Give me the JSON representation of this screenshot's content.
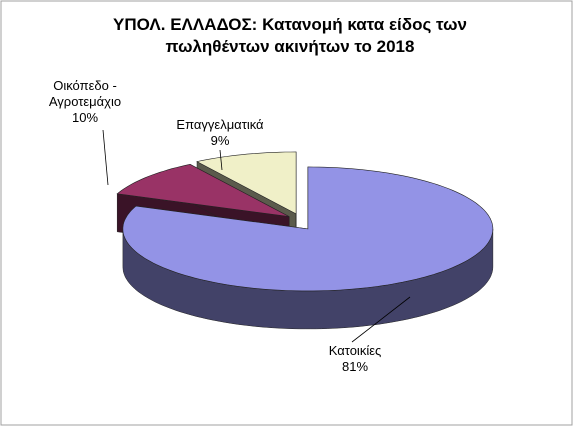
{
  "chart_data": {
    "type": "pie",
    "title": "ΥΠΟΛ. ΕΛΛΑΔΟΣ: Κατανομή κατα είδος των πωληθέντων ακινήτων το 2018",
    "categories": [
      "Κατοικίες",
      "Οικόπεδο - Αγροτεμάχιο",
      "Επαγγελματικά"
    ],
    "values": [
      81,
      10,
      9
    ],
    "value_labels": [
      "81%",
      "10%",
      "9%"
    ],
    "colors": [
      "#9393e6",
      "#993366",
      "#f0f0c8"
    ],
    "three_d": true
  }
}
